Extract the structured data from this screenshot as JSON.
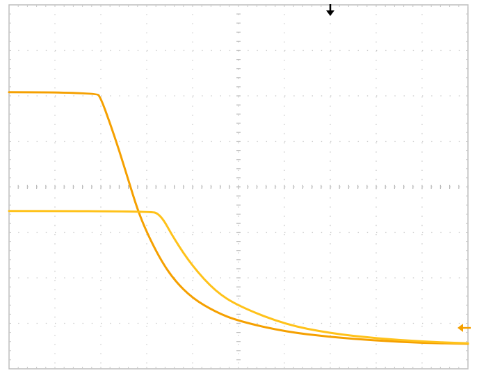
{
  "chart_data": {
    "type": "line",
    "title": "",
    "xlabel": "",
    "ylabel": "",
    "grid": true,
    "grid_divisions": {
      "x": 10,
      "y": 8
    },
    "xlim": [
      0,
      10
    ],
    "ylim": [
      -4,
      4
    ],
    "series": [
      {
        "color": "#f5a000",
        "x": [
          0,
          1.9,
          2.0,
          2.2,
          2.4,
          2.6,
          2.8,
          3.0,
          3.3,
          3.6,
          4.0,
          4.5,
          5.0,
          6.0,
          7.0,
          8.0,
          9.0,
          10.0
        ],
        "y": [
          2.08,
          2.08,
          1.95,
          1.4,
          0.8,
          0.15,
          -0.5,
          -1.0,
          -1.6,
          -2.05,
          -2.45,
          -2.75,
          -2.95,
          -3.18,
          -3.3,
          -3.38,
          -3.43,
          -3.45
        ]
      },
      {
        "color": "#ffc21a",
        "x": [
          0,
          3.05,
          3.3,
          3.6,
          4.0,
          4.5,
          5.0,
          6.0,
          7.0,
          8.0,
          9.0,
          10.0
        ],
        "y": [
          -0.53,
          -0.53,
          -0.6,
          -1.15,
          -1.75,
          -2.3,
          -2.62,
          -3.02,
          -3.22,
          -3.33,
          -3.4,
          -3.44
        ]
      }
    ],
    "markers": {
      "trigger_position": {
        "x": 7.0,
        "color": "#000000"
      },
      "trigger_level": {
        "y": -3.1,
        "color": "#f5a000"
      }
    }
  }
}
